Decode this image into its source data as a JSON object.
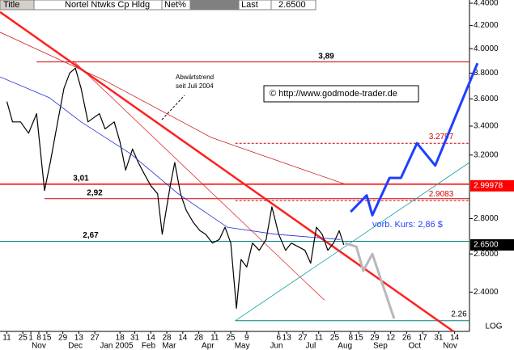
{
  "header": {
    "title": "Title",
    "symbol": "Nortel Ntwks Cp Hldg",
    "net": "Net%",
    "last": "Last",
    "last_value": "2.6500"
  },
  "chart_data": {
    "type": "line",
    "log_scale": true,
    "scale_label": "LOG",
    "xlim": [
      -6,
      405
    ],
    "ylim": [
      2.21,
      4.43
    ],
    "yticks": [
      {
        "value": 4.4,
        "label": "4.4000"
      },
      {
        "value": 4.2,
        "label": "4.2000"
      },
      {
        "value": 4.0,
        "label": "4.0000"
      },
      {
        "value": 3.8,
        "label": "3.8000"
      },
      {
        "value": 3.6,
        "label": "3.6000"
      },
      {
        "value": 3.4,
        "label": "3.4000"
      },
      {
        "value": 3.2,
        "label": "3.2000"
      },
      {
        "value": 2.8,
        "label": "2.8000"
      },
      {
        "value": 2.6,
        "label": "2.6000"
      },
      {
        "value": 2.4,
        "label": "2.4000"
      }
    ],
    "xticks": [
      {
        "value": 0,
        "label": "11"
      },
      {
        "value": 14,
        "label": "25"
      },
      {
        "value": 21,
        "label": "1"
      },
      {
        "value": 28,
        "label": "8"
      },
      {
        "value": 35,
        "label": "15"
      },
      {
        "value": 49,
        "label": "29"
      },
      {
        "value": 63,
        "label": "13"
      },
      {
        "value": 77,
        "label": "27"
      },
      {
        "value": 99,
        "label": "18"
      },
      {
        "value": 112,
        "label": "31"
      },
      {
        "value": 126,
        "label": "14"
      },
      {
        "value": 140,
        "label": "28"
      },
      {
        "value": 154,
        "label": "14"
      },
      {
        "value": 168,
        "label": "28"
      },
      {
        "value": 182,
        "label": "11"
      },
      {
        "value": 196,
        "label": "25"
      },
      {
        "value": 210,
        "label": "9"
      },
      {
        "value": 238,
        "label": "6"
      },
      {
        "value": 245,
        "label": "13"
      },
      {
        "value": 259,
        "label": "27"
      },
      {
        "value": 273,
        "label": "11"
      },
      {
        "value": 287,
        "label": "25"
      },
      {
        "value": 301,
        "label": "8"
      },
      {
        "value": 308,
        "label": "15"
      },
      {
        "value": 322,
        "label": "29"
      },
      {
        "value": 336,
        "label": "12"
      },
      {
        "value": 350,
        "label": "26"
      },
      {
        "value": 364,
        "label": "17"
      },
      {
        "value": 378,
        "label": "31"
      },
      {
        "value": 392,
        "label": "14"
      }
    ],
    "months": [
      {
        "value": 28,
        "label": "Nov"
      },
      {
        "value": 60,
        "label": "Dec"
      },
      {
        "value": 96,
        "label": "Jan 2005"
      },
      {
        "value": 124,
        "label": "Feb"
      },
      {
        "value": 142,
        "label": "Mar"
      },
      {
        "value": 176,
        "label": "Apr"
      },
      {
        "value": 206,
        "label": "May"
      },
      {
        "value": 236,
        "label": "Jun"
      },
      {
        "value": 266,
        "label": "Jul"
      },
      {
        "value": 296,
        "label": "Aug"
      },
      {
        "value": 327,
        "label": "Sep"
      },
      {
        "value": 357,
        "label": "Oct"
      },
      {
        "value": 388,
        "label": "Nov"
      }
    ],
    "series": [
      {
        "color": "#000000",
        "width": 1.2,
        "x": [
          0,
          5,
          12,
          19,
          26,
          33,
          38,
          44,
          50,
          55,
          60,
          65,
          71,
          76,
          81,
          86,
          94,
          99,
          104,
          110,
          115,
          120,
          126,
          132,
          136,
          143,
          147,
          152,
          157,
          163,
          169,
          174,
          180,
          186,
          191,
          196,
          201,
          205,
          210,
          215,
          221,
          227,
          232,
          238,
          244,
          249,
          255,
          261,
          266,
          271,
          276,
          281,
          286,
          291,
          295
        ],
        "values": [
          3.58,
          3.43,
          3.43,
          3.35,
          3.49,
          2.97,
          3.15,
          3.41,
          3.68,
          3.8,
          3.84,
          3.68,
          3.43,
          3.46,
          3.49,
          3.38,
          3.43,
          3.29,
          3.1,
          3.24,
          3.15,
          3.08,
          3.0,
          2.95,
          2.71,
          3.0,
          3.15,
          2.95,
          2.85,
          2.78,
          2.73,
          2.71,
          2.66,
          2.68,
          2.75,
          2.66,
          2.32,
          2.57,
          2.53,
          2.66,
          2.62,
          2.68,
          2.87,
          2.71,
          2.62,
          2.66,
          2.64,
          2.62,
          2.55,
          2.75,
          2.71,
          2.62,
          2.66,
          2.73,
          2.65
        ]
      },
      {
        "color": "#d02020",
        "width": 0.8,
        "x": [
          -6,
          86,
          179,
          249,
          296
        ],
        "values": [
          4.14,
          3.74,
          3.32,
          3.13,
          3.01
        ]
      },
      {
        "color": "#2030d0",
        "width": 0.8,
        "x": [
          -6,
          37,
          65,
          108,
          150,
          193,
          235,
          292
        ],
        "values": [
          3.77,
          3.61,
          3.43,
          3.21,
          2.95,
          2.75,
          2.71,
          2.68
        ]
      },
      {
        "color": "#1f3fff",
        "width": 3,
        "x": [
          301,
          315,
          320,
          335,
          345,
          359,
          375,
          412
        ],
        "values": [
          2.84,
          2.94,
          2.82,
          3.05,
          3.05,
          3.28,
          3.13,
          3.88
        ]
      },
      {
        "color": "#b8b8b8",
        "width": 3,
        "x": [
          296,
          306,
          312,
          320,
          339
        ],
        "values": [
          2.66,
          2.64,
          2.51,
          2.6,
          2.27
        ]
      }
    ],
    "trendlines": [
      {
        "color": "#ff2020",
        "width": 2.5,
        "x": [
          -6,
          391
        ],
        "values": [
          4.32,
          2.21
        ]
      },
      {
        "color": "#e03030",
        "width": 0.8,
        "x": [
          58,
          278
        ],
        "values": [
          3.9,
          2.36
        ]
      },
      {
        "color": "#10a0a0",
        "width": 0.8,
        "x": [
          200,
          405
        ],
        "values": [
          2.26,
          3.15
        ]
      }
    ],
    "levels": [
      {
        "value": 3.89,
        "label": "3,89",
        "from": 26,
        "color": "#d00000",
        "dashed": false
      },
      {
        "value": 3.01,
        "label": "3,01",
        "from": -6,
        "color": "#ff0000",
        "dashed": false
      },
      {
        "value": 2.92,
        "label": "2,92",
        "from": 33,
        "color": "#d00000",
        "dashed": false
      },
      {
        "value": 2.67,
        "label": "2,67",
        "from": -6,
        "color": "#008080",
        "dashed": false
      },
      {
        "value": 2.26,
        "label": "2.26",
        "from": 200,
        "color": "#008080",
        "dashed": false
      },
      {
        "value": 3.2797,
        "label": "3.2797",
        "from": 200,
        "color": "#d00000",
        "dashed": true
      },
      {
        "value": 2.9083,
        "label": "2.9083",
        "from": 200,
        "color": "#d00000",
        "dashed": true
      }
    ],
    "price_tags": [
      {
        "value": 2.99978,
        "color": "#ff0000"
      },
      {
        "value": 2.65,
        "label": "2.6500",
        "color": "#000000"
      }
    ],
    "annotations": [
      "Abwärtstrend",
      "seit Juli 2004"
    ],
    "copyright": "© http://www.godmode-trader.de",
    "forecast_note": "vorb. Kurs: 2,86 $"
  }
}
